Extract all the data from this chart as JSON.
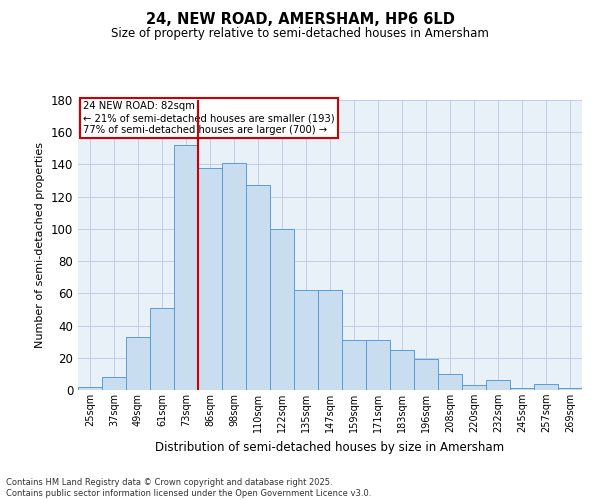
{
  "title": "24, NEW ROAD, AMERSHAM, HP6 6LD",
  "subtitle": "Size of property relative to semi-detached houses in Amersham",
  "xlabel": "Distribution of semi-detached houses by size in Amersham",
  "ylabel": "Number of semi-detached properties",
  "bins": [
    "25sqm",
    "37sqm",
    "49sqm",
    "61sqm",
    "73sqm",
    "86sqm",
    "98sqm",
    "110sqm",
    "122sqm",
    "135sqm",
    "147sqm",
    "159sqm",
    "171sqm",
    "183sqm",
    "196sqm",
    "208sqm",
    "220sqm",
    "232sqm",
    "245sqm",
    "257sqm",
    "269sqm"
  ],
  "values": [
    2,
    8,
    33,
    51,
    152,
    138,
    141,
    127,
    100,
    62,
    62,
    31,
    31,
    25,
    19,
    10,
    3,
    6,
    1,
    4,
    1
  ],
  "bar_color": "#c9ddf0",
  "bar_edge_color": "#5b9bd5",
  "vline_color": "#cc0000",
  "annotation_text": "24 NEW ROAD: 82sqm\n← 21% of semi-detached houses are smaller (193)\n77% of semi-detached houses are larger (700) →",
  "annotation_box_color": "#ffffff",
  "annotation_box_edge": "#cc0000",
  "ylim": [
    0,
    180
  ],
  "yticks": [
    0,
    20,
    40,
    60,
    80,
    100,
    120,
    140,
    160,
    180
  ],
  "grid_color": "#c0d0e8",
  "background_color": "#e8f0f8",
  "footnote": "Contains HM Land Registry data © Crown copyright and database right 2025.\nContains public sector information licensed under the Open Government Licence v3.0."
}
